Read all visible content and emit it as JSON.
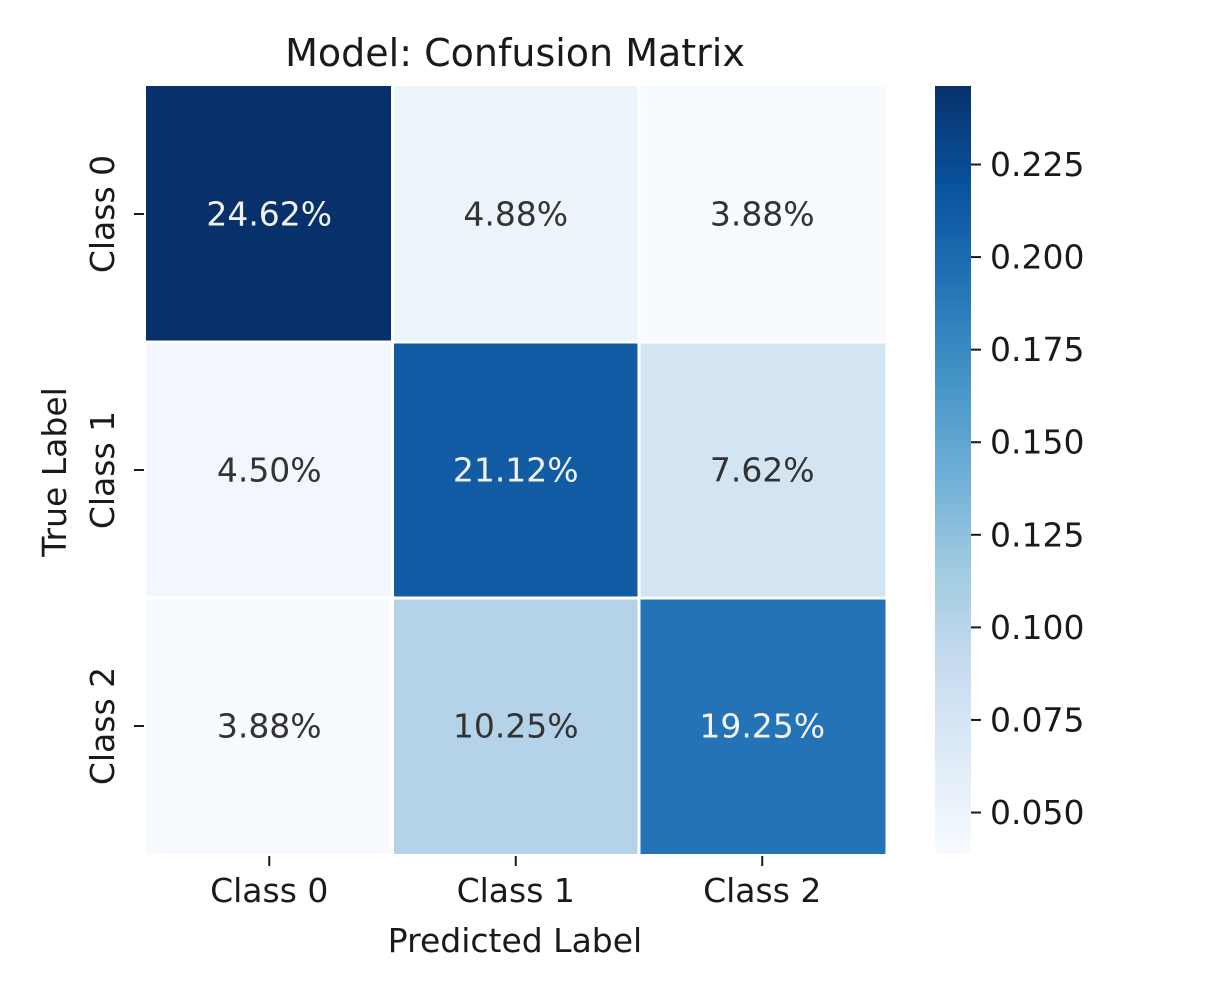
{
  "chart_data": {
    "type": "heatmap",
    "title": "Model: Confusion Matrix",
    "xlabel": "Predicted Label",
    "ylabel": "True Label",
    "x_categories": [
      "Class 0",
      "Class 1",
      "Class 2"
    ],
    "y_categories": [
      "Class 0",
      "Class 1",
      "Class 2"
    ],
    "values": [
      [
        0.2462,
        0.0488,
        0.0388
      ],
      [
        0.045,
        0.2112,
        0.0762
      ],
      [
        0.0388,
        0.1025,
        0.1925
      ]
    ],
    "cell_labels": [
      [
        "24.62%",
        "4.88%",
        "3.88%"
      ],
      [
        "4.50%",
        "21.12%",
        "7.62%"
      ],
      [
        "3.88%",
        "10.25%",
        "19.25%"
      ]
    ],
    "colormap": "Blues",
    "colorbar": {
      "vmin": 0.0388,
      "vmax": 0.2462,
      "ticks": [
        0.05,
        0.075,
        0.1,
        0.125,
        0.15,
        0.175,
        0.2,
        0.225
      ],
      "tick_labels": [
        "0.050",
        "0.075",
        "0.100",
        "0.125",
        "0.150",
        "0.175",
        "0.200",
        "0.225"
      ]
    },
    "grid": false,
    "legend": "colorbar-right"
  }
}
